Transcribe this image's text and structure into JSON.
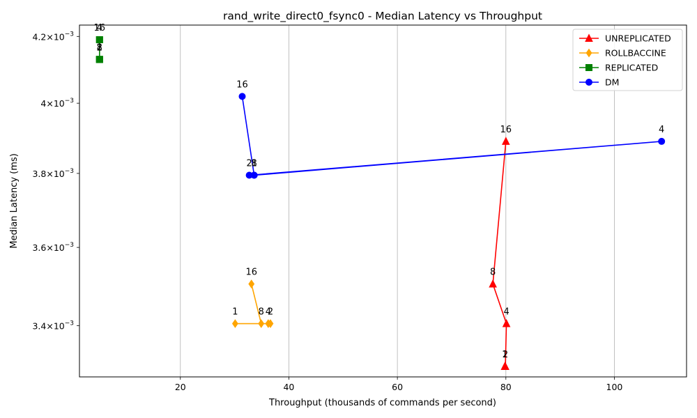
{
  "chart_data": {
    "type": "line",
    "title": "rand_write_direct0_fsync0 - Median Latency vs Throughput",
    "xlabel": "Throughput (thousands of commands per second)",
    "ylabel": "Median Latency (ms)",
    "xlim": [
      1.4,
      113.3
    ],
    "ylim": [
      0.003275,
      0.004235
    ],
    "yscale": "log",
    "x_ticks": [
      {
        "value": 20,
        "label": "20"
      },
      {
        "value": 40,
        "label": "40"
      },
      {
        "value": 60,
        "label": "60"
      },
      {
        "value": 80,
        "label": "80"
      },
      {
        "value": 100,
        "label": "100"
      }
    ],
    "y_ticks": [
      {
        "value": 0.0034,
        "mantissa": "3.4",
        "base": "10",
        "exponent": "−3"
      },
      {
        "value": 0.0036,
        "mantissa": "3.6",
        "base": "10",
        "exponent": "−3"
      },
      {
        "value": 0.0038,
        "mantissa": "3.8",
        "base": "10",
        "exponent": "−3"
      },
      {
        "value": 0.004,
        "mantissa": "4",
        "base": "10",
        "exponent": "−3"
      },
      {
        "value": 0.0042,
        "mantissa": "4.2",
        "base": "10",
        "exponent": "−3"
      }
    ],
    "x_grid": true,
    "legend_position": "top-right",
    "series": [
      {
        "name": "UNREPLICATED",
        "color": "#ff0000",
        "marker": "triangle",
        "points": [
          {
            "x": 79.8,
            "y": 0.0033,
            "label": "1"
          },
          {
            "x": 79.9,
            "y": 0.0033,
            "label": "2"
          },
          {
            "x": 80.1,
            "y": 0.003405,
            "label": "4"
          },
          {
            "x": 77.6,
            "y": 0.003505,
            "label": "8"
          },
          {
            "x": 80.0,
            "y": 0.00389,
            "label": "16"
          }
        ]
      },
      {
        "name": "ROLLBACCINE",
        "color": "#ffa500",
        "marker": "diamond",
        "points": [
          {
            "x": 30.1,
            "y": 0.003405,
            "label": "1"
          },
          {
            "x": 36.6,
            "y": 0.003405,
            "label": "2"
          },
          {
            "x": 36.2,
            "y": 0.003405,
            "label": "4"
          },
          {
            "x": 34.9,
            "y": 0.003405,
            "label": "8"
          },
          {
            "x": 33.1,
            "y": 0.003505,
            "label": "16"
          }
        ]
      },
      {
        "name": "REPLICATED",
        "color": "#008000",
        "marker": "square",
        "points": [
          {
            "x": 5.1,
            "y": 0.00413,
            "label": "1"
          },
          {
            "x": 5.1,
            "y": 0.00413,
            "label": "2"
          },
          {
            "x": 5.1,
            "y": 0.00419,
            "label": "4"
          },
          {
            "x": 5.1,
            "y": 0.00413,
            "label": "8"
          },
          {
            "x": 5.1,
            "y": 0.00419,
            "label": "16"
          }
        ]
      },
      {
        "name": "DM",
        "color": "#0000ff",
        "marker": "circle",
        "points": [
          {
            "x": 33.6,
            "y": 0.003795,
            "label": "1"
          },
          {
            "x": 32.7,
            "y": 0.003795,
            "label": "2"
          },
          {
            "x": 108.7,
            "y": 0.00389,
            "label": "4"
          },
          {
            "x": 33.6,
            "y": 0.003795,
            "label": "8"
          },
          {
            "x": 31.4,
            "y": 0.00402,
            "label": "16"
          }
        ]
      }
    ]
  }
}
